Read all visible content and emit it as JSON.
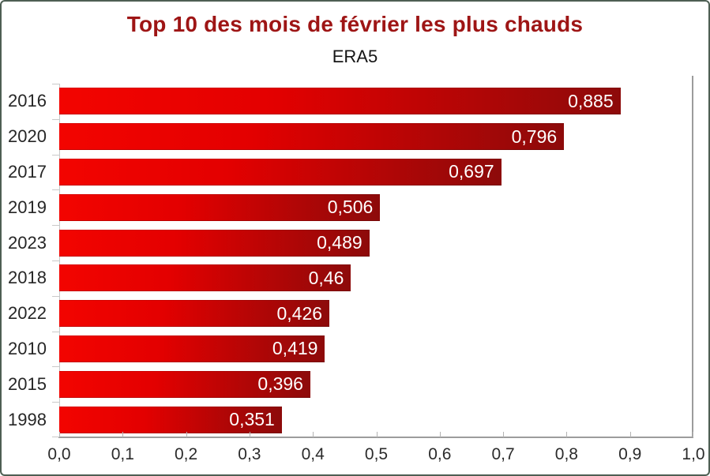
{
  "chart_data": {
    "type": "bar",
    "orientation": "horizontal",
    "title": "Top 10 des mois de février les plus chauds",
    "subtitle": "ERA5",
    "categories": [
      "2016",
      "2020",
      "2017",
      "2019",
      "2023",
      "2018",
      "2022",
      "2010",
      "2015",
      "1998"
    ],
    "values": [
      0.885,
      0.796,
      0.697,
      0.506,
      0.489,
      0.46,
      0.426,
      0.419,
      0.396,
      0.351
    ],
    "value_labels": [
      "0,885",
      "0,796",
      "0,697",
      "0,506",
      "0,489",
      "0,46",
      "0,426",
      "0,419",
      "0,396",
      "0,351"
    ],
    "xlim": [
      0.0,
      1.0
    ],
    "x_tick_labels": [
      "0,0",
      "0,1",
      "0,2",
      "0,3",
      "0,4",
      "0,5",
      "0,6",
      "0,7",
      "0,8",
      "0,9",
      "1,0"
    ],
    "grid": false,
    "legend": false,
    "colors": {
      "title": "#9e1515",
      "subtitle": "#151515",
      "bar_gradient_start": "#f30400",
      "bar_gradient_mid": "#e30000",
      "bar_gradient_end": "#8d0a0a",
      "value_label": "#ffffff",
      "axis_line": "#9c9c9c",
      "tick": "#c9c9c9",
      "axis_text": "#262626",
      "frame_border": "#4e5f53"
    }
  }
}
